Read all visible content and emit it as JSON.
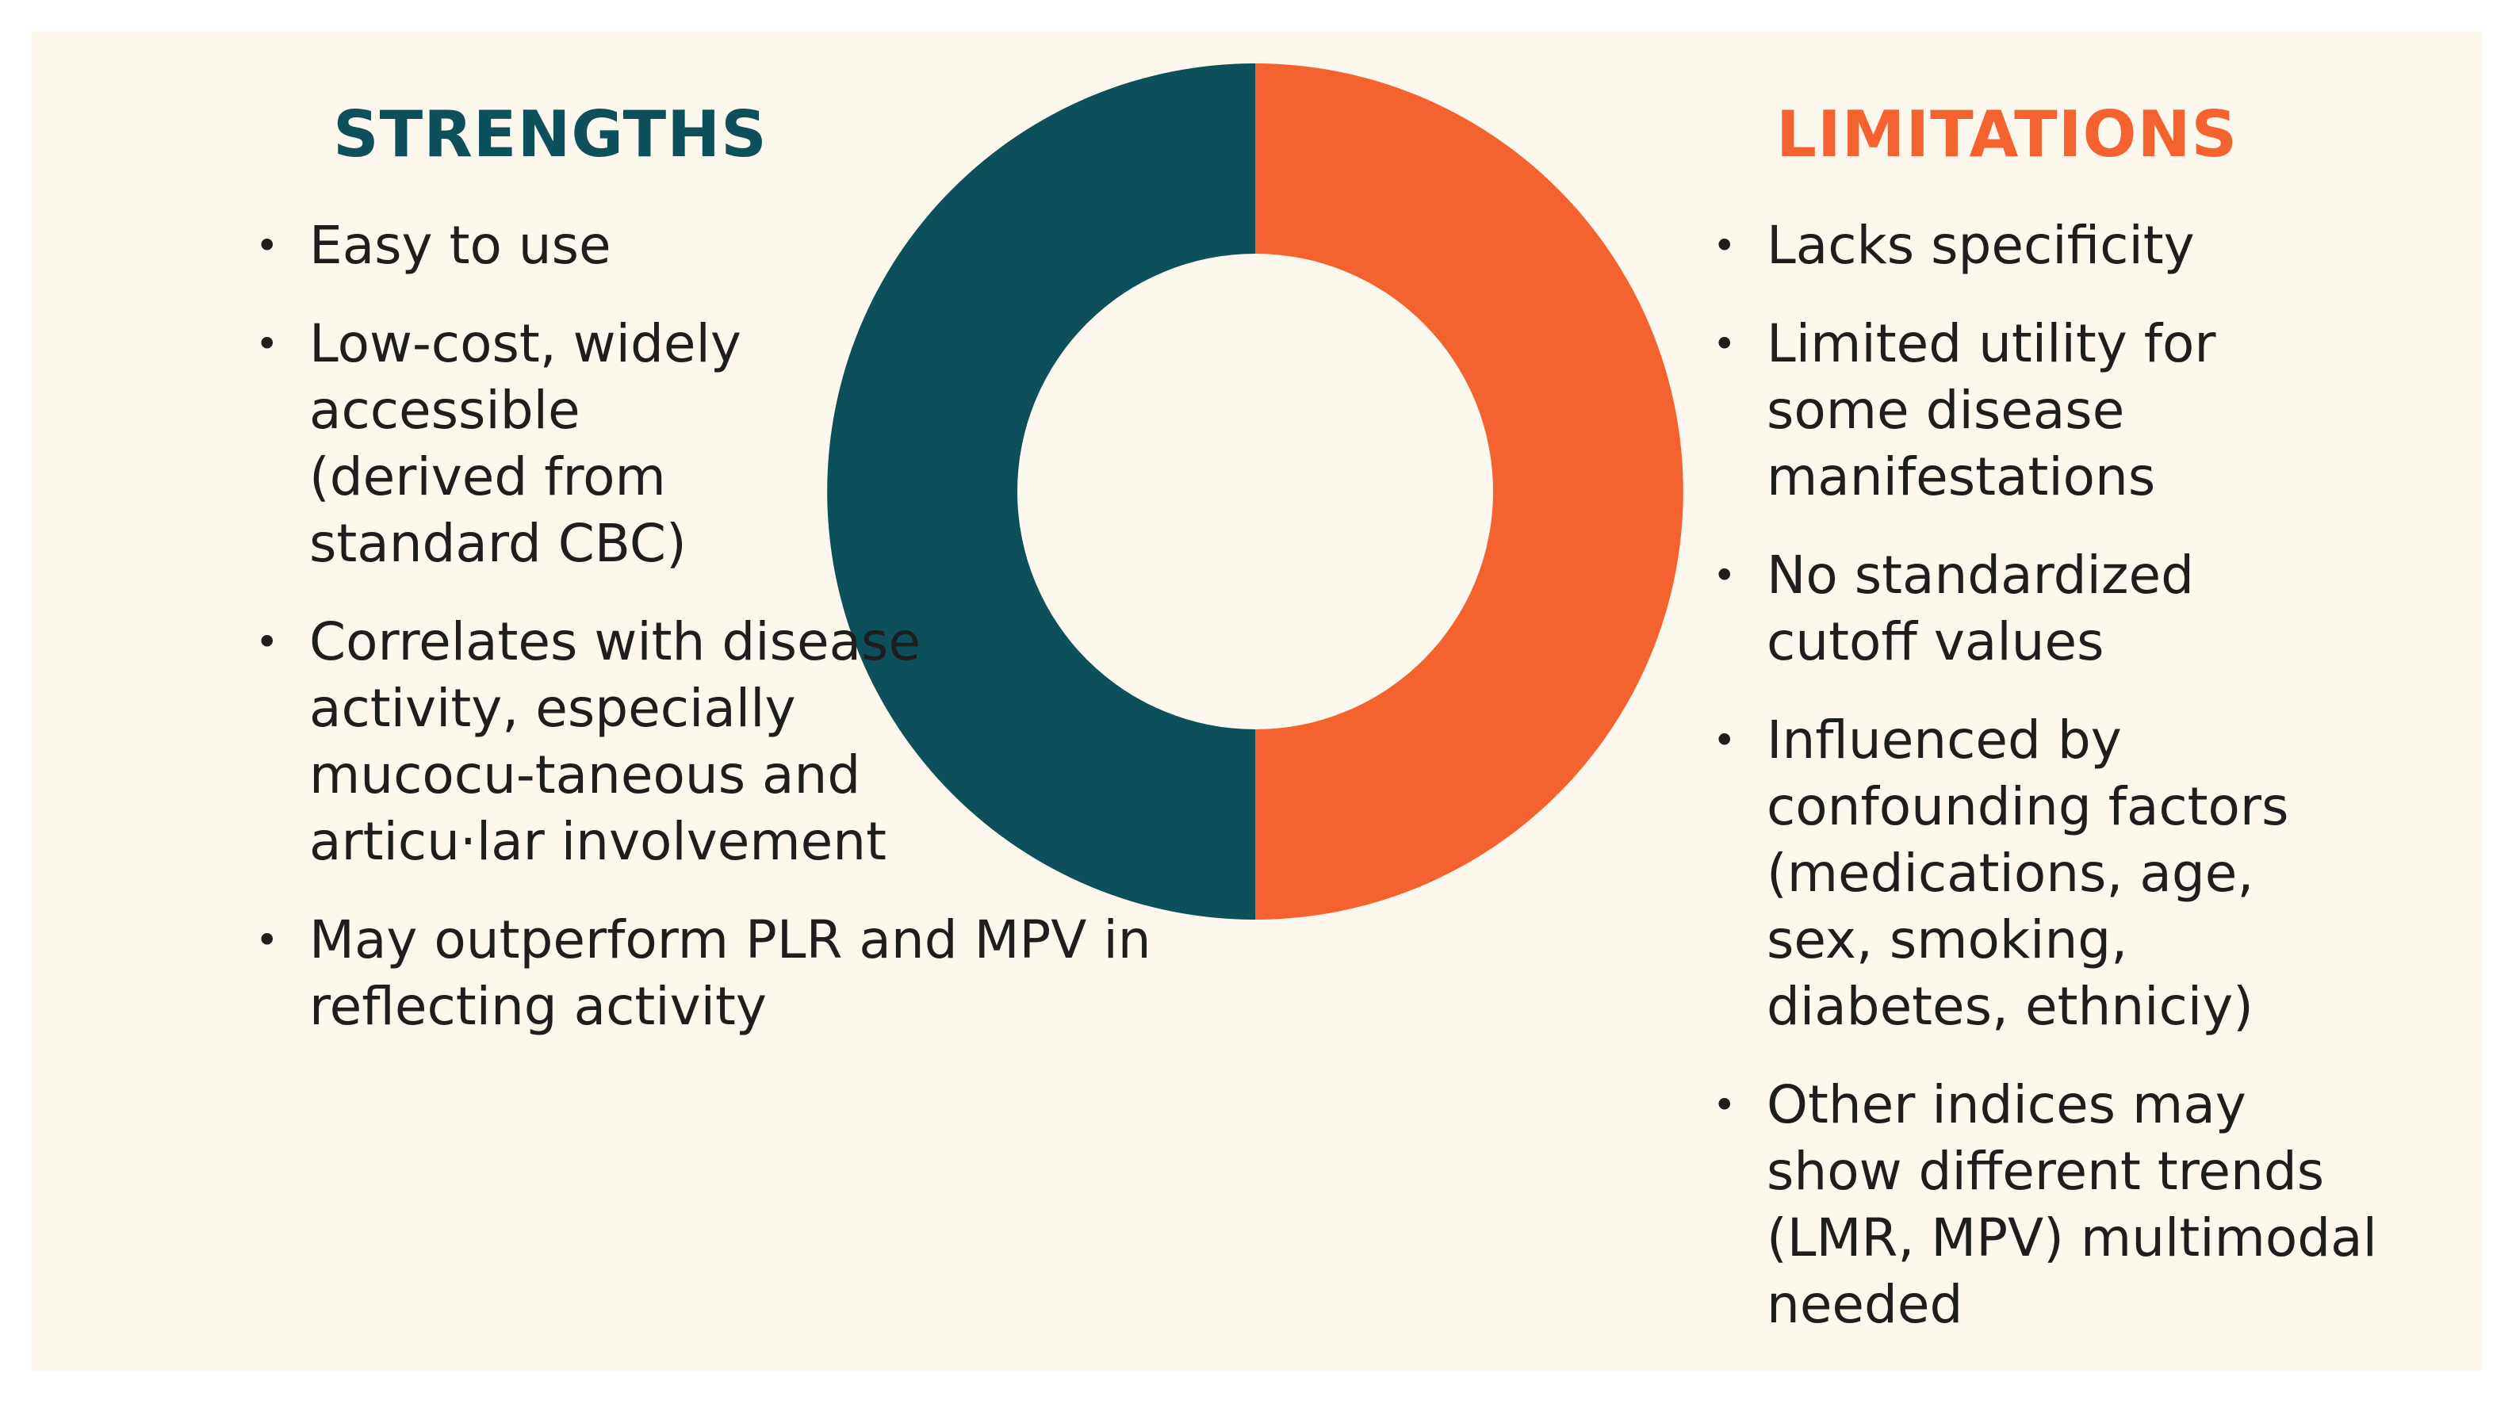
{
  "colors": {
    "background": "#fdf8ee",
    "strengths": "#0d4f5a",
    "limitations": "#f4622f",
    "text": "#1e1e1e"
  },
  "strengths": {
    "title": "STRENGTHS",
    "items": [
      "Easy to use",
      "Low-cost, widely accessible (derived from standard CBC)",
      "Correlates with disease activity, especially mucocu-taneous and articu·lar involvement",
      "May outperform PLR and MPV in reflecting activity"
    ]
  },
  "limitations": {
    "title": "LIMITATIONS",
    "items": [
      "Lacks specificity",
      "Limited utility for some disease manifestations",
      "No standardized cutoff values",
      "Influenced by confounding factors (medications, age, sex, smoking, diabetes, ethniciy)",
      "Other indices may show different trends (LMR, MPV) multimodal needed"
    ]
  },
  "bullet": "•"
}
